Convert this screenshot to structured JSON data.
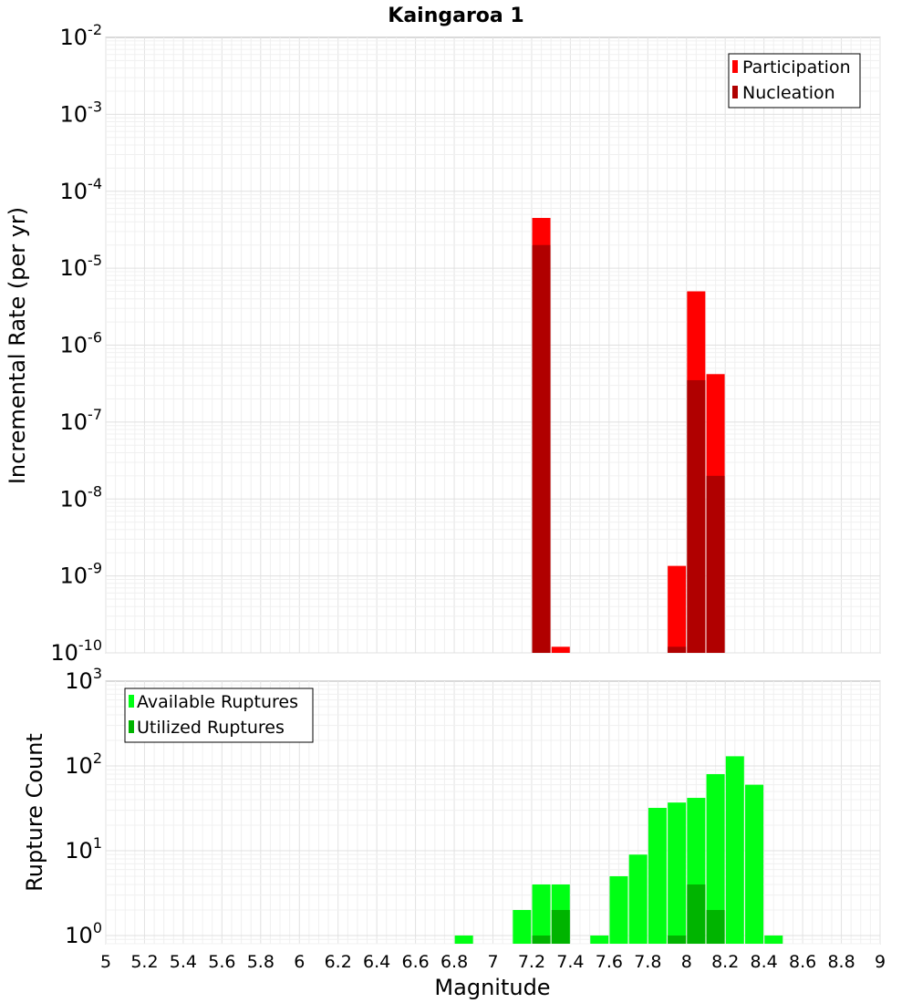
{
  "chart_data": [
    {
      "type": "bar",
      "title": "Kaingaroa 1",
      "ylabel": "Incremental Rate (per yr)",
      "xlabel": "",
      "xlim": [
        5,
        9
      ],
      "ylim": [
        1e-10,
        0.01
      ],
      "yscale": "log",
      "grid": true,
      "legend_position": "top-right",
      "y_tick_exponents": [
        "-10",
        "-9",
        "-8",
        "-7",
        "-6",
        "-5",
        "-4",
        "-3",
        "-2"
      ],
      "y_tick_base": "10",
      "x": [
        7.25,
        7.35,
        7.95,
        8.05,
        8.15
      ],
      "series": [
        {
          "name": "Participation",
          "color": "#ff0000",
          "values": [
            4.5e-05,
            1.2e-10,
            1.35e-09,
            5e-06,
            4.2e-07
          ]
        },
        {
          "name": "Nucleation",
          "color": "#b00000",
          "values": [
            2e-05,
            1e-10,
            1.2e-10,
            3.5e-07,
            2e-08
          ]
        }
      ]
    },
    {
      "type": "bar",
      "title": "",
      "ylabel": "Rupture Count",
      "xlabel": "Magnitude",
      "xlim": [
        5,
        9
      ],
      "ylim": [
        0.8,
        1000
      ],
      "yscale": "log",
      "grid": true,
      "legend_position": "top-left",
      "y_tick_exponents": [
        "0",
        "1",
        "2",
        "3"
      ],
      "y_tick_base": "10",
      "x_ticks": [
        "5",
        "5.2",
        "5.4",
        "5.6",
        "5.8",
        "6",
        "6.2",
        "6.4",
        "6.6",
        "6.8",
        "7",
        "7.2",
        "7.4",
        "7.6",
        "7.8",
        "8",
        "8.2",
        "8.4",
        "8.6",
        "8.8",
        "9"
      ],
      "series": [
        {
          "name": "Available Ruptures",
          "color": "#00ff14",
          "x": [
            6.85,
            7.15,
            7.25,
            7.35,
            7.55,
            7.65,
            7.75,
            7.85,
            7.95,
            8.05,
            8.15,
            8.25,
            8.35,
            8.45
          ],
          "values": [
            1,
            2,
            4,
            4,
            1,
            5,
            9,
            32,
            37,
            42,
            80,
            130,
            60,
            1
          ]
        },
        {
          "name": "Utilized Ruptures",
          "color": "#00b400",
          "x": [
            7.25,
            7.35,
            7.95,
            8.05,
            8.15
          ],
          "values": [
            1,
            2,
            1,
            4,
            2
          ]
        }
      ]
    }
  ]
}
